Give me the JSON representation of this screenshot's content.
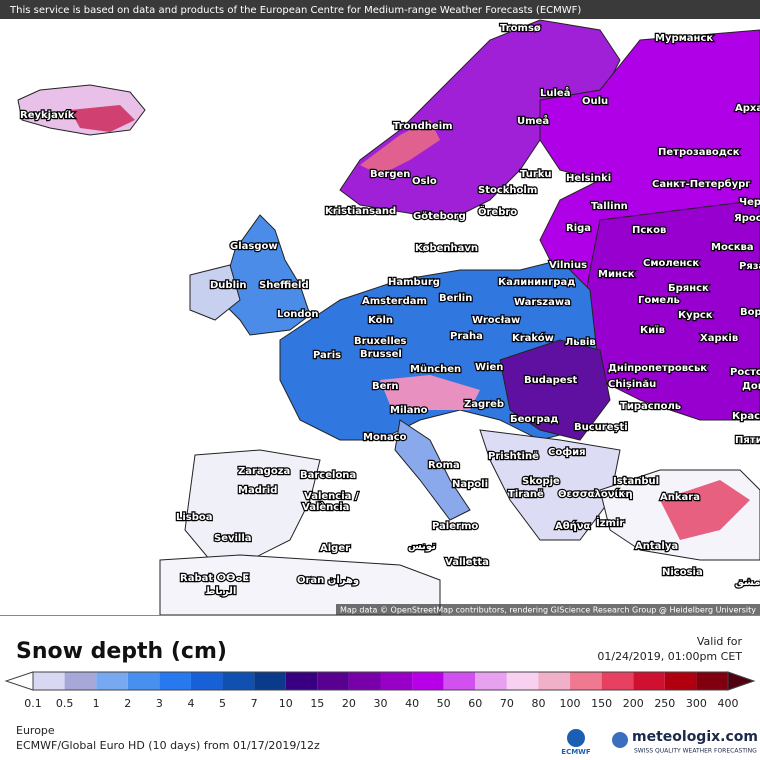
{
  "header": {
    "notice": "This service is based on data and products of the European Centre for Medium-range Weather Forecasts (ECMWF)"
  },
  "map": {
    "attribution": "Map data © OpenStreetMap contributors, rendering GIScience Research Group @ Heidelberg University",
    "labels": [
      "Tromsø",
      "Мурманск",
      "Reykjavík",
      "Luleå",
      "Oulu",
      "Арха",
      "Umeå",
      "Trondheim",
      "Петрозаводск",
      "Bergen",
      "Turku",
      "Helsinki",
      "Oslo",
      "Санкт-Петербург",
      "Stockholm",
      "Чер",
      "Kristiansand",
      "Göteborg",
      "Örebro",
      "Tallinn",
      "Яросл",
      "Riga",
      "Псков",
      "Glasgow",
      "København",
      "Москва",
      "Vilnius",
      "Смоленск",
      "Ряза",
      "Минск",
      "Hamburg",
      "Калининград",
      "Dublin",
      "Sheffield",
      "Брянск",
      "Berlin",
      "Amsterdam",
      "Warszawa",
      "Гомель",
      "Ворон",
      "London",
      "Köln",
      "Wrocław",
      "Курск",
      "Київ",
      "Praha",
      "Kraków",
      "Львів",
      "Харків",
      "Bruxelles",
      "Brussel",
      "Paris",
      "Дніпропетровськ",
      "München",
      "Wien",
      "Chișinău",
      "Росто",
      "Budapest",
      "Bern",
      "Дон",
      "Zagreb",
      "Тирасполь",
      "Milano",
      "Београд",
      "Красно",
      "București",
      "Monaco",
      "Пяти",
      "Prishtinë",
      "София",
      "Zaragoza",
      "Barcelona",
      "Roma",
      "Istanbul",
      "Napoli",
      "Skopje",
      "Madrid",
      "Tiranë",
      "Θεσσαλονίκη",
      "Ankara",
      "Valencia /",
      "València",
      "Lisboa",
      "Αθήνα",
      "İzmir",
      "Palermo",
      "Sevilla",
      "Antalya",
      "Alger",
      "تونس",
      "Valletta",
      "Nicosia",
      "Rabat ⵔⴱⴰⵟ",
      "الرباط",
      "Oran وهران",
      "دمشق"
    ]
  },
  "legend": {
    "title": "Snow depth (cm)",
    "valid_label": "Valid for",
    "valid_time": "01/24/2019, 01:00pm CET",
    "labels": [
      0.1,
      0.5,
      1,
      2,
      3,
      4,
      5,
      7,
      10,
      15,
      20,
      30,
      40,
      50,
      60,
      70,
      80,
      100,
      150,
      200,
      250,
      300,
      400
    ],
    "colors": [
      "#d8d8f2",
      "#a8a8d8",
      "#78a8f0",
      "#4890f0",
      "#2878f0",
      "#1860d8",
      "#1050b0",
      "#0a3a8a",
      "#380080",
      "#580090",
      "#7800a8",
      "#9800c8",
      "#b800e8",
      "#d050f0",
      "#e8a0f0",
      "#f8d0f0",
      "#f0b0c8",
      "#f07890",
      "#e84060",
      "#d01030",
      "#b00010",
      "#800010"
    ]
  },
  "footer": {
    "region": "Europe",
    "model": "ECMWF/Global Euro HD (10 days) from 01/17/2019/12z",
    "ecmwf": "ECMWF",
    "brand": "meteologix.com",
    "tagline": "SWISS QUALITY WEATHER FORECASTING"
  }
}
